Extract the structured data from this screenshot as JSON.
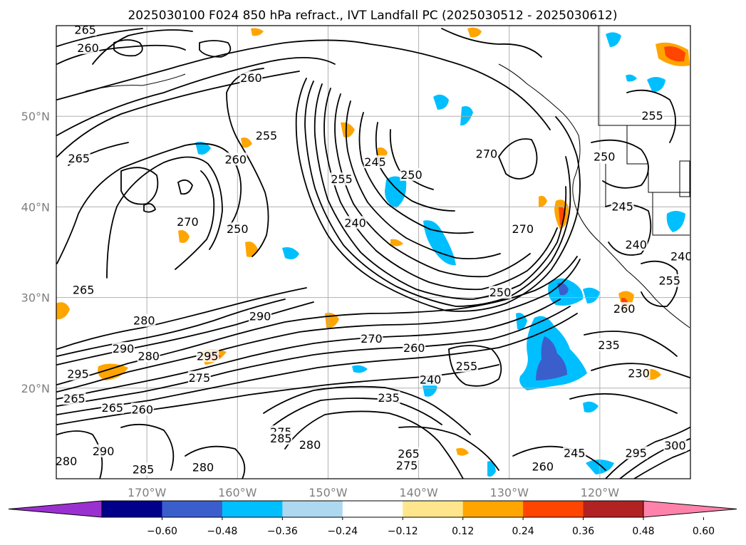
{
  "title": "2025030100 F024 850 hPa refract., IVT Landfall PC (2025030512 - 2025030612)",
  "map": {
    "lon_range": [
      -180,
      -110
    ],
    "lat_range": [
      10,
      60
    ],
    "lon_ticks": [
      -170,
      -160,
      -150,
      -140,
      -130,
      -120
    ],
    "lat_ticks": [
      20,
      30,
      40,
      50
    ],
    "lon_tick_labels": [
      "170°W",
      "160°W",
      "150°W",
      "140°W",
      "130°W",
      "120°W"
    ],
    "lat_tick_labels": [
      "20°N",
      "30°N",
      "40°N",
      "50°N"
    ],
    "grid": true
  },
  "colorbar": {
    "ticks": [
      "−0.60",
      "−0.48",
      "−0.36",
      "−0.24",
      "−0.12",
      "0.12",
      "0.24",
      "0.36",
      "0.48",
      "0.60"
    ],
    "colors": [
      "#9b30d0",
      "#00008b",
      "#3a5fcd",
      "#00bfff",
      "#add8f0",
      "#ffffff",
      "#ffe68c",
      "#ffa500",
      "#ff4500",
      "#b22222",
      "#ff82ab"
    ]
  },
  "contour_labels": [
    {
      "text": "260",
      "lon": -176.5,
      "lat": 57.5
    },
    {
      "text": "260",
      "lon": -158.5,
      "lat": 54.2
    },
    {
      "text": "265",
      "lon": -177.5,
      "lat": 45.3
    },
    {
      "text": "255",
      "lon": -156.8,
      "lat": 47.8
    },
    {
      "text": "260",
      "lon": -160.2,
      "lat": 45.2
    },
    {
      "text": "245",
      "lon": -144.8,
      "lat": 44.9
    },
    {
      "text": "250",
      "lon": -140.8,
      "lat": 43.5
    },
    {
      "text": "255",
      "lon": -148.5,
      "lat": 43.0
    },
    {
      "text": "270",
      "lon": -132.5,
      "lat": 45.8
    },
    {
      "text": "250",
      "lon": -119.5,
      "lat": 45.5
    },
    {
      "text": "255",
      "lon": -114.2,
      "lat": 50.0
    },
    {
      "text": "270",
      "lon": -165.5,
      "lat": 38.3
    },
    {
      "text": "250",
      "lon": -160.0,
      "lat": 37.5
    },
    {
      "text": "240",
      "lon": -147.0,
      "lat": 38.2
    },
    {
      "text": "270",
      "lon": -128.5,
      "lat": 37.5
    },
    {
      "text": "245",
      "lon": -117.5,
      "lat": 40.0
    },
    {
      "text": "240",
      "lon": -116.0,
      "lat": 35.8
    },
    {
      "text": "240",
      "lon": -111.0,
      "lat": 34.5
    },
    {
      "text": "255",
      "lon": -112.3,
      "lat": 31.8
    },
    {
      "text": "260",
      "lon": -117.3,
      "lat": 28.7
    },
    {
      "text": "265",
      "lon": -177.0,
      "lat": 30.8
    },
    {
      "text": "250",
      "lon": -131.0,
      "lat": 30.5
    },
    {
      "text": "280",
      "lon": -170.3,
      "lat": 27.4
    },
    {
      "text": "290",
      "lon": -157.5,
      "lat": 27.9
    },
    {
      "text": "270",
      "lon": -145.2,
      "lat": 25.4
    },
    {
      "text": "260",
      "lon": -140.5,
      "lat": 24.4
    },
    {
      "text": "290",
      "lon": -172.6,
      "lat": 24.3
    },
    {
      "text": "280",
      "lon": -169.8,
      "lat": 23.5
    },
    {
      "text": "295",
      "lon": -163.3,
      "lat": 23.5
    },
    {
      "text": "295",
      "lon": -177.6,
      "lat": 21.5
    },
    {
      "text": "275",
      "lon": -164.2,
      "lat": 21.1
    },
    {
      "text": "255",
      "lon": -134.7,
      "lat": 22.4
    },
    {
      "text": "235",
      "lon": -119.0,
      "lat": 24.7
    },
    {
      "text": "240",
      "lon": -138.7,
      "lat": 20.9
    },
    {
      "text": "230",
      "lon": -115.7,
      "lat": 21.6
    },
    {
      "text": "235",
      "lon": -143.3,
      "lat": 18.9
    },
    {
      "text": "265",
      "lon": -178.0,
      "lat": 18.8
    },
    {
      "text": "265",
      "lon": -173.8,
      "lat": 17.8
    },
    {
      "text": "260",
      "lon": -170.5,
      "lat": 17.6
    },
    {
      "text": "275",
      "lon": -155.2,
      "lat": 15.1
    },
    {
      "text": "285",
      "lon": -155.2,
      "lat": 14.4
    },
    {
      "text": "280",
      "lon": -152.0,
      "lat": 13.7
    },
    {
      "text": "290",
      "lon": -174.8,
      "lat": 13.0
    },
    {
      "text": "265",
      "lon": -141.1,
      "lat": 12.7
    },
    {
      "text": "275",
      "lon": -141.3,
      "lat": 11.4
    },
    {
      "text": "280",
      "lon": -178.9,
      "lat": 11.9
    },
    {
      "text": "285",
      "lon": -170.4,
      "lat": 11.0
    },
    {
      "text": "280",
      "lon": -163.8,
      "lat": 11.2
    },
    {
      "text": "245",
      "lon": -122.8,
      "lat": 12.8
    },
    {
      "text": "260",
      "lon": -126.3,
      "lat": 11.3
    },
    {
      "text": "295",
      "lon": -116.0,
      "lat": 12.8
    },
    {
      "text": "300",
      "lon": -111.7,
      "lat": 13.6
    },
    {
      "text": "265",
      "lon": -176.8,
      "lat": 59.5
    }
  ]
}
